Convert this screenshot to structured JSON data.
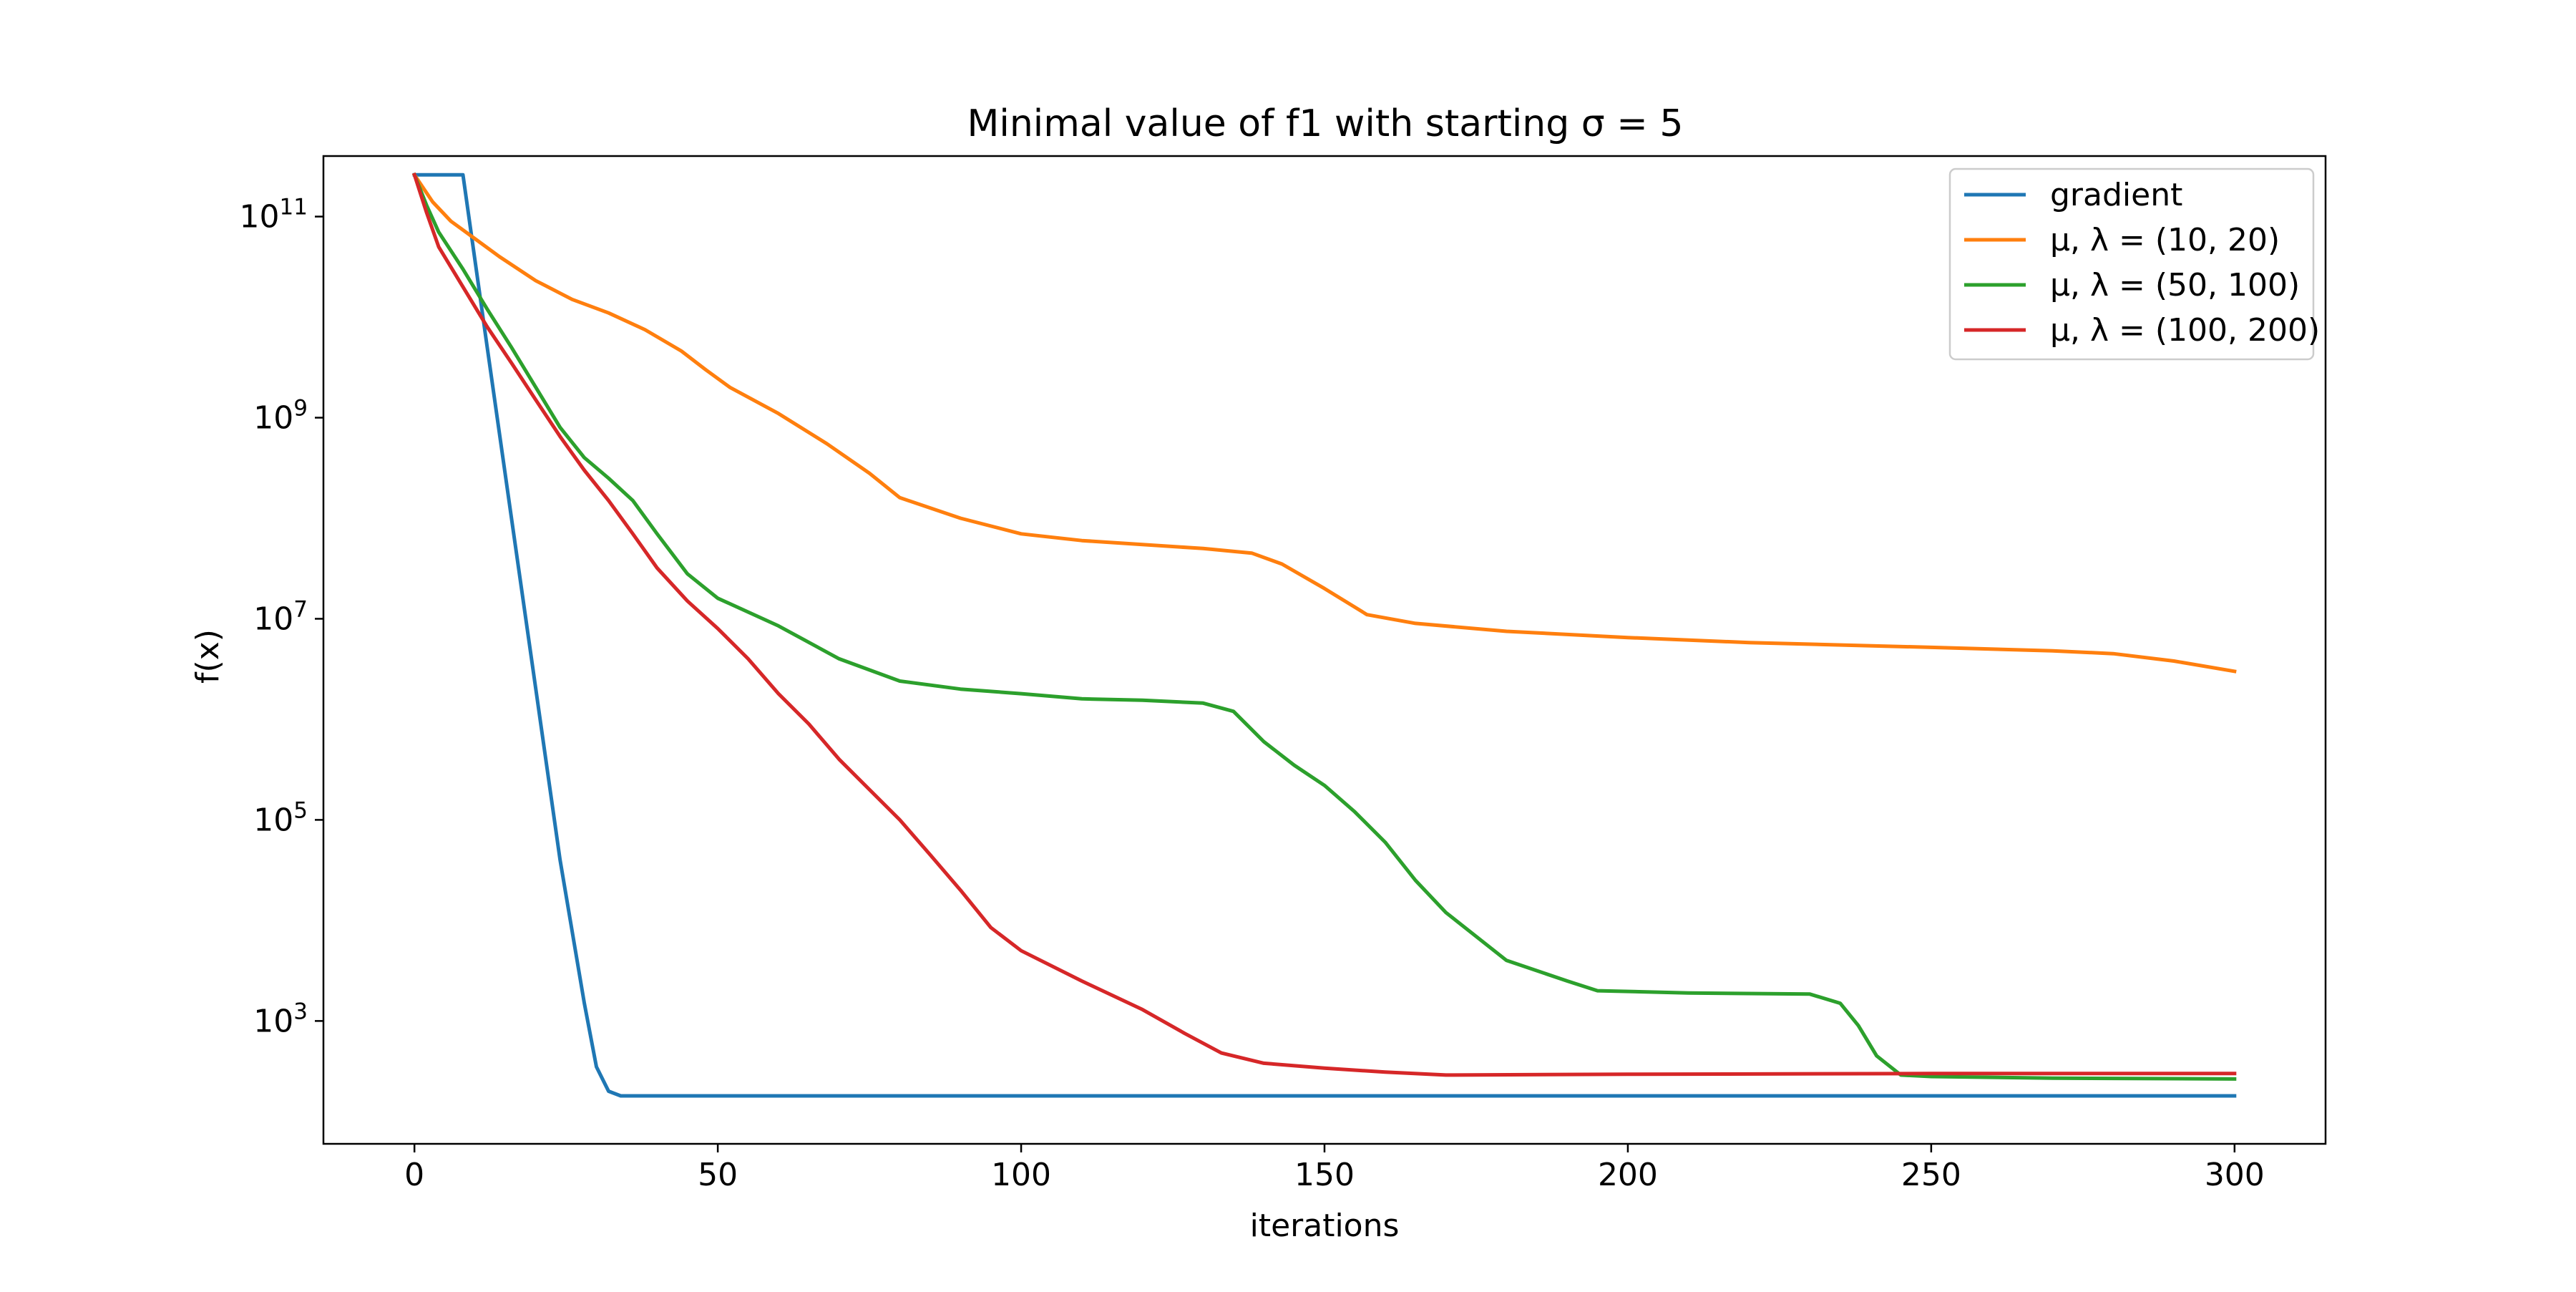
{
  "chart_data": {
    "type": "line",
    "title": "Minimal value of f1 with starting σ = 5",
    "xlabel": "iterations",
    "ylabel": "f(x)",
    "xlim": [
      -15,
      315
    ],
    "ylim": [
      60,
      400000000000
    ],
    "yscale": "log",
    "x_ticks": [
      {
        "value": 0,
        "label": "0"
      },
      {
        "value": 50,
        "label": "50"
      },
      {
        "value": 100,
        "label": "100"
      },
      {
        "value": 150,
        "label": "150"
      },
      {
        "value": 200,
        "label": "200"
      },
      {
        "value": 250,
        "label": "250"
      },
      {
        "value": 300,
        "label": "300"
      }
    ],
    "y_ticks": [
      {
        "value": 1000,
        "base": "10",
        "exp": "3"
      },
      {
        "value": 100000,
        "base": "10",
        "exp": "5"
      },
      {
        "value": 10000000,
        "base": "10",
        "exp": "7"
      },
      {
        "value": 1000000000,
        "base": "10",
        "exp": "9"
      },
      {
        "value": 100000000000,
        "base": "10",
        "exp": "11"
      }
    ],
    "grid": false,
    "legend_position": "top-right",
    "series": [
      {
        "name": "gradient",
        "color": "#1f77b4",
        "points": [
          [
            0,
            260000000000.0
          ],
          [
            8,
            260000000000.0
          ],
          [
            12,
            5000000000.0
          ],
          [
            16,
            100000000.0
          ],
          [
            20,
            2000000.0
          ],
          [
            24,
            40000.0
          ],
          [
            28,
            1500.0
          ],
          [
            30,
            350
          ],
          [
            32,
            200
          ],
          [
            34,
            180
          ],
          [
            40,
            180
          ],
          [
            100,
            180
          ],
          [
            200,
            180
          ],
          [
            300,
            180
          ]
        ]
      },
      {
        "name": "μ, λ = (10, 20)",
        "color": "#ff7f0e",
        "points": [
          [
            0,
            260000000000.0
          ],
          [
            3,
            140000000000.0
          ],
          [
            6,
            90000000000.0
          ],
          [
            10,
            60000000000.0
          ],
          [
            14,
            40000000000.0
          ],
          [
            20,
            23000000000.0
          ],
          [
            26,
            15000000000.0
          ],
          [
            32,
            11000000000.0
          ],
          [
            38,
            7500000000.0
          ],
          [
            44,
            4600000000.0
          ],
          [
            48,
            3000000000.0
          ],
          [
            52,
            2000000000.0
          ],
          [
            60,
            1100000000.0
          ],
          [
            68,
            550000000.0
          ],
          [
            75,
            280000000.0
          ],
          [
            80,
            160000000.0
          ],
          [
            90,
            100000000.0
          ],
          [
            100,
            70000000.0
          ],
          [
            110,
            60000000.0
          ],
          [
            130,
            50000000.0
          ],
          [
            138,
            45000000.0
          ],
          [
            143,
            35000000.0
          ],
          [
            150,
            20000000.0
          ],
          [
            157,
            11000000.0
          ],
          [
            165,
            9000000.0
          ],
          [
            180,
            7500000.0
          ],
          [
            200,
            6500000.0
          ],
          [
            220,
            5800000.0
          ],
          [
            250,
            5200000.0
          ],
          [
            270,
            4800000.0
          ],
          [
            280,
            4500000.0
          ],
          [
            290,
            3800000.0
          ],
          [
            300,
            3000000.0
          ]
        ]
      },
      {
        "name": "μ, λ = (50, 100)",
        "color": "#2ca02c",
        "points": [
          [
            0,
            260000000000.0
          ],
          [
            2,
            130000000000.0
          ],
          [
            4,
            70000000000.0
          ],
          [
            8,
            30000000000.0
          ],
          [
            12,
            12000000000.0
          ],
          [
            16,
            5000000000.0
          ],
          [
            20,
            2000000000.0
          ],
          [
            24,
            800000000.0
          ],
          [
            28,
            400000000.0
          ],
          [
            32,
            250000000.0
          ],
          [
            36,
            150000000.0
          ],
          [
            40,
            70000000.0
          ],
          [
            45,
            28000000.0
          ],
          [
            50,
            16000000.0
          ],
          [
            60,
            8500000.0
          ],
          [
            70,
            4000000.0
          ],
          [
            80,
            2400000.0
          ],
          [
            90,
            2000000.0
          ],
          [
            100,
            1800000.0
          ],
          [
            110,
            1600000.0
          ],
          [
            120,
            1550000.0
          ],
          [
            130,
            1450000.0
          ],
          [
            135,
            1200000.0
          ],
          [
            140,
            600000.0
          ],
          [
            145,
            350000.0
          ],
          [
            150,
            220000.0
          ],
          [
            155,
            120000.0
          ],
          [
            160,
            60000.0
          ],
          [
            165,
            25000.0
          ],
          [
            170,
            12000.0
          ],
          [
            180,
            4000.0
          ],
          [
            190,
            2500.0
          ],
          [
            195,
            2000.0
          ],
          [
            210,
            1900.0
          ],
          [
            230,
            1850.0
          ],
          [
            235,
            1500.0
          ],
          [
            238,
            900
          ],
          [
            241,
            450
          ],
          [
            245,
            290
          ],
          [
            250,
            280
          ],
          [
            270,
            270
          ],
          [
            300,
            265
          ]
        ]
      },
      {
        "name": "μ, λ = (100, 200)",
        "color": "#d62728",
        "points": [
          [
            0,
            260000000000.0
          ],
          [
            2,
            110000000000.0
          ],
          [
            4,
            50000000000.0
          ],
          [
            8,
            20000000000.0
          ],
          [
            12,
            8000000000.0
          ],
          [
            16,
            3500000000.0
          ],
          [
            20,
            1500000000.0
          ],
          [
            24,
            650000000.0
          ],
          [
            28,
            300000000.0
          ],
          [
            32,
            150000000.0
          ],
          [
            36,
            70000000.0
          ],
          [
            40,
            32000000.0
          ],
          [
            45,
            15000000.0
          ],
          [
            50,
            8000000.0
          ],
          [
            55,
            4000000.0
          ],
          [
            60,
            1800000.0
          ],
          [
            65,
            900000.0
          ],
          [
            70,
            400000.0
          ],
          [
            75,
            200000.0
          ],
          [
            80,
            100000.0
          ],
          [
            85,
            45000.0
          ],
          [
            90,
            20000.0
          ],
          [
            95,
            8500.0
          ],
          [
            100,
            5000.0
          ],
          [
            110,
            2500.0
          ],
          [
            120,
            1300.0
          ],
          [
            127,
            750
          ],
          [
            133,
            480
          ],
          [
            140,
            380
          ],
          [
            150,
            340
          ],
          [
            160,
            310
          ],
          [
            170,
            290
          ],
          [
            200,
            295
          ],
          [
            250,
            300
          ],
          [
            300,
            300
          ]
        ]
      }
    ]
  }
}
